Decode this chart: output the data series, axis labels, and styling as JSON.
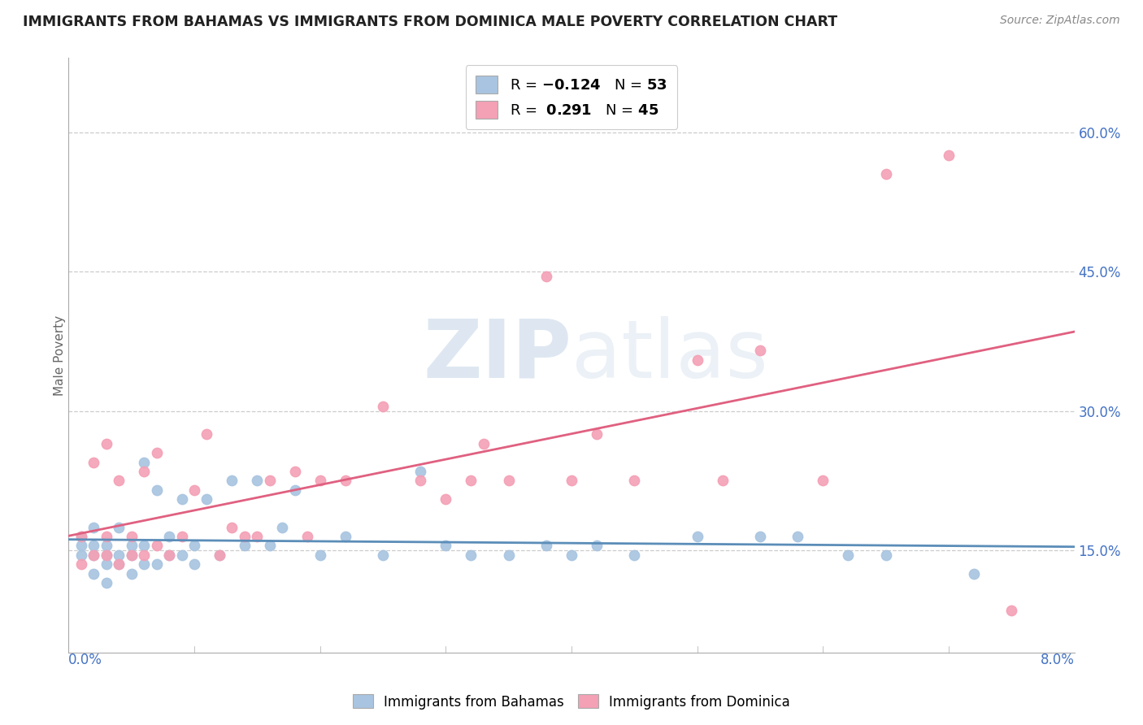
{
  "title": "IMMIGRANTS FROM BAHAMAS VS IMMIGRANTS FROM DOMINICA MALE POVERTY CORRELATION CHART",
  "source": "Source: ZipAtlas.com",
  "ylabel": "Male Poverty",
  "right_yticks": [
    "15.0%",
    "30.0%",
    "45.0%",
    "60.0%"
  ],
  "right_ytick_vals": [
    0.15,
    0.3,
    0.45,
    0.6
  ],
  "xlim": [
    0.0,
    0.08
  ],
  "ylim": [
    0.04,
    0.68
  ],
  "legend_r1_color": "-0.124",
  "legend_r2_color": "0.291",
  "legend_n1": "53",
  "legend_n2": "45",
  "color_bahamas": "#a8c4e0",
  "color_dominica": "#f4a0b5",
  "color_line_bahamas": "#5b8db8",
  "color_line_dominica": "#e06080",
  "bahamas_x": [
    0.001,
    0.001,
    0.001,
    0.002,
    0.002,
    0.002,
    0.002,
    0.003,
    0.003,
    0.003,
    0.003,
    0.004,
    0.004,
    0.004,
    0.005,
    0.005,
    0.005,
    0.006,
    0.006,
    0.006,
    0.007,
    0.007,
    0.008,
    0.008,
    0.009,
    0.009,
    0.01,
    0.01,
    0.011,
    0.012,
    0.013,
    0.014,
    0.015,
    0.016,
    0.017,
    0.018,
    0.02,
    0.022,
    0.025,
    0.028,
    0.03,
    0.032,
    0.035,
    0.038,
    0.04,
    0.042,
    0.045,
    0.05,
    0.055,
    0.058,
    0.062,
    0.065,
    0.072
  ],
  "bahamas_y": [
    0.145,
    0.155,
    0.165,
    0.125,
    0.145,
    0.155,
    0.175,
    0.115,
    0.135,
    0.145,
    0.155,
    0.135,
    0.145,
    0.175,
    0.125,
    0.145,
    0.155,
    0.135,
    0.155,
    0.245,
    0.135,
    0.215,
    0.145,
    0.165,
    0.145,
    0.205,
    0.135,
    0.155,
    0.205,
    0.145,
    0.225,
    0.155,
    0.225,
    0.155,
    0.175,
    0.215,
    0.145,
    0.165,
    0.145,
    0.235,
    0.155,
    0.145,
    0.145,
    0.155,
    0.145,
    0.155,
    0.145,
    0.165,
    0.165,
    0.165,
    0.145,
    0.145,
    0.125
  ],
  "dominica_x": [
    0.001,
    0.001,
    0.002,
    0.002,
    0.003,
    0.003,
    0.003,
    0.004,
    0.004,
    0.005,
    0.005,
    0.006,
    0.006,
    0.007,
    0.007,
    0.008,
    0.009,
    0.01,
    0.011,
    0.012,
    0.013,
    0.014,
    0.015,
    0.016,
    0.018,
    0.019,
    0.02,
    0.022,
    0.025,
    0.028,
    0.03,
    0.032,
    0.033,
    0.035,
    0.038,
    0.04,
    0.042,
    0.045,
    0.05,
    0.052,
    0.055,
    0.06,
    0.065,
    0.07,
    0.075
  ],
  "dominica_y": [
    0.135,
    0.165,
    0.145,
    0.245,
    0.145,
    0.165,
    0.265,
    0.135,
    0.225,
    0.145,
    0.165,
    0.145,
    0.235,
    0.155,
    0.255,
    0.145,
    0.165,
    0.215,
    0.275,
    0.145,
    0.175,
    0.165,
    0.165,
    0.225,
    0.235,
    0.165,
    0.225,
    0.225,
    0.305,
    0.225,
    0.205,
    0.225,
    0.265,
    0.225,
    0.445,
    0.225,
    0.275,
    0.225,
    0.355,
    0.225,
    0.365,
    0.225,
    0.555,
    0.575,
    0.085
  ]
}
